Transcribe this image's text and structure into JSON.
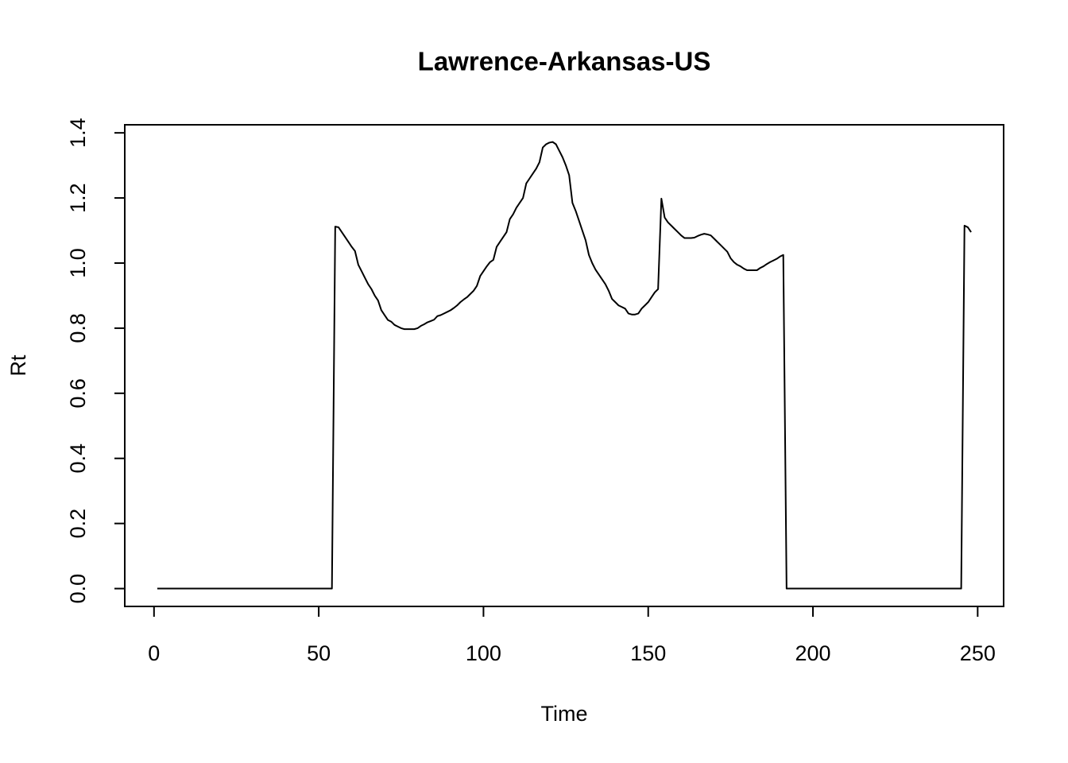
{
  "chart_data": {
    "type": "line",
    "title": "Lawrence-Arkansas-US",
    "x_label": "Time",
    "y_label": "Rt",
    "x": [
      1,
      2,
      3,
      4,
      5,
      6,
      7,
      8,
      9,
      10,
      11,
      12,
      13,
      14,
      15,
      16,
      17,
      18,
      19,
      20,
      21,
      22,
      23,
      24,
      25,
      26,
      27,
      28,
      29,
      30,
      31,
      32,
      33,
      34,
      35,
      36,
      37,
      38,
      39,
      40,
      41,
      42,
      43,
      44,
      45,
      46,
      47,
      48,
      49,
      50,
      51,
      52,
      53,
      54,
      55,
      56,
      57,
      58,
      59,
      60,
      61,
      62,
      63,
      64,
      65,
      66,
      67,
      68,
      69,
      70,
      71,
      72,
      73,
      74,
      75,
      76,
      77,
      78,
      79,
      80,
      81,
      82,
      83,
      84,
      85,
      86,
      87,
      88,
      89,
      90,
      91,
      92,
      93,
      94,
      95,
      96,
      97,
      98,
      99,
      100,
      101,
      102,
      103,
      104,
      105,
      106,
      107,
      108,
      109,
      110,
      111,
      112,
      113,
      114,
      115,
      116,
      117,
      118,
      119,
      120,
      121,
      122,
      123,
      124,
      125,
      126,
      127,
      128,
      129,
      130,
      131,
      132,
      133,
      134,
      135,
      136,
      137,
      138,
      139,
      140,
      141,
      142,
      143,
      144,
      145,
      146,
      147,
      148,
      149,
      150,
      151,
      152,
      153,
      154,
      155,
      156,
      157,
      158,
      159,
      160,
      161,
      162,
      163,
      164,
      165,
      166,
      167,
      168,
      169,
      170,
      171,
      172,
      173,
      174,
      175,
      176,
      177,
      178,
      179,
      180,
      181,
      182,
      183,
      184,
      185,
      186,
      187,
      188,
      189,
      190,
      191,
      192,
      193,
      194,
      195,
      196,
      197,
      198,
      199,
      200,
      201,
      202,
      203,
      204,
      205,
      206,
      207,
      208,
      209,
      210,
      211,
      212,
      213,
      214,
      215,
      216,
      217,
      218,
      219,
      220,
      221,
      222,
      223,
      224,
      225,
      226,
      227,
      228,
      229,
      230,
      231,
      232,
      233,
      234,
      235,
      236,
      237,
      238,
      239,
      240,
      241,
      242,
      243,
      244,
      245,
      246,
      247,
      248
    ],
    "series": [
      {
        "name": "Rt",
        "color": "#000000",
        "values": [
          0,
          0,
          0,
          0,
          0,
          0,
          0,
          0,
          0,
          0,
          0,
          0,
          0,
          0,
          0,
          0,
          0,
          0,
          0,
          0,
          0,
          0,
          0,
          0,
          0,
          0,
          0,
          0,
          0,
          0,
          0,
          0,
          0,
          0,
          0,
          0,
          0,
          0,
          0,
          0,
          0,
          0,
          0,
          0,
          0,
          0,
          0,
          0,
          0,
          0,
          0,
          0,
          0,
          0,
          1.112,
          1.11,
          1.095,
          1.08,
          1.065,
          1.05,
          1.037,
          0.995,
          0.975,
          0.955,
          0.935,
          0.92,
          0.9,
          0.885,
          0.855,
          0.84,
          0.825,
          0.82,
          0.81,
          0.805,
          0.8,
          0.797,
          0.797,
          0.797,
          0.797,
          0.8,
          0.807,
          0.812,
          0.818,
          0.822,
          0.826,
          0.837,
          0.84,
          0.845,
          0.85,
          0.855,
          0.862,
          0.87,
          0.88,
          0.888,
          0.895,
          0.905,
          0.915,
          0.93,
          0.96,
          0.975,
          0.99,
          1.003,
          1.01,
          1.05,
          1.065,
          1.08,
          1.095,
          1.135,
          1.15,
          1.17,
          1.185,
          1.2,
          1.245,
          1.26,
          1.275,
          1.29,
          1.31,
          1.355,
          1.365,
          1.37,
          1.372,
          1.365,
          1.345,
          1.325,
          1.3,
          1.27,
          1.185,
          1.16,
          1.13,
          1.1,
          1.07,
          1.025,
          1.0,
          0.98,
          0.965,
          0.95,
          0.935,
          0.915,
          0.89,
          0.88,
          0.87,
          0.865,
          0.86,
          0.845,
          0.842,
          0.842,
          0.845,
          0.86,
          0.87,
          0.88,
          0.895,
          0.91,
          0.92,
          1.198,
          1.14,
          1.125,
          1.115,
          1.105,
          1.095,
          1.085,
          1.077,
          1.077,
          1.077,
          1.078,
          1.083,
          1.087,
          1.09,
          1.088,
          1.085,
          1.075,
          1.065,
          1.055,
          1.045,
          1.035,
          1.015,
          1.003,
          0.995,
          0.99,
          0.983,
          0.978,
          0.978,
          0.978,
          0.978,
          0.985,
          0.99,
          0.997,
          1.003,
          1.008,
          1.013,
          1.02,
          1.025,
          0,
          0,
          0,
          0,
          0,
          0,
          0,
          0,
          0,
          0,
          0,
          0,
          0,
          0,
          0,
          0,
          0,
          0,
          0,
          0,
          0,
          0,
          0,
          0,
          0,
          0,
          0,
          0,
          0,
          0,
          0,
          0,
          0,
          0,
          0,
          0,
          0,
          0,
          0,
          0,
          0,
          0,
          0,
          0,
          0,
          0,
          0,
          0,
          0,
          0,
          0,
          0,
          0,
          0,
          1.115,
          1.11,
          1.095
        ]
      }
    ],
    "xlim": [
      -8.88,
      257.88
    ],
    "ylim": [
      -0.0548,
      1.4248
    ],
    "xticks": [
      0,
      50,
      100,
      150,
      200,
      250
    ],
    "yticks": [
      {
        "value": 0,
        "label": "0.0"
      },
      0.2,
      0.4,
      0.6,
      0.8,
      {
        "value": 1,
        "label": "1.0"
      },
      1.2,
      1.4
    ]
  }
}
